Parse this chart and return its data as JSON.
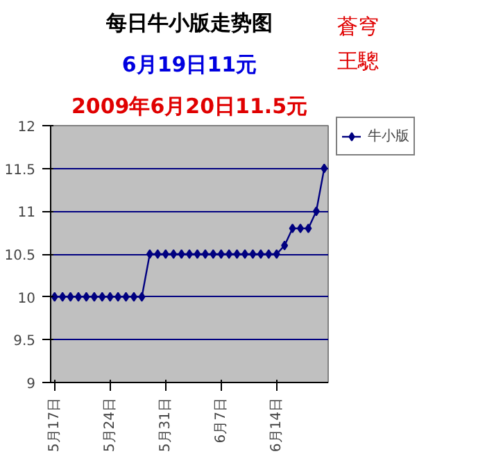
{
  "chart_data": {
    "type": "line",
    "title": "每日牛小版走势图",
    "subtitle": "6月19日11元",
    "annotations": [
      "2009年6月20日11.5元",
      "蒼穹",
      "王驄"
    ],
    "categories": [
      "5月17日",
      null,
      null,
      null,
      null,
      null,
      null,
      "5月24日",
      null,
      null,
      null,
      null,
      null,
      null,
      "5月31日",
      null,
      null,
      null,
      null,
      null,
      null,
      "6月7日",
      null,
      null,
      null,
      null,
      null,
      null,
      "6月14日",
      null,
      null,
      null,
      null,
      null,
      null
    ],
    "series": [
      {
        "name": "牛小版",
        "color": "#000080",
        "values": [
          10,
          10,
          10,
          10,
          10,
          10,
          10,
          10,
          10,
          10,
          10,
          10,
          10.5,
          10.5,
          10.5,
          10.5,
          10.5,
          10.5,
          10.5,
          10.5,
          10.5,
          10.5,
          10.5,
          10.5,
          10.5,
          10.5,
          10.5,
          10.5,
          10.5,
          10.6,
          10.8,
          10.8,
          10.8,
          11,
          11.5
        ]
      }
    ],
    "ylim": [
      9,
      12
    ],
    "yticks": [
      9,
      9.5,
      10,
      10.5,
      11,
      11.5,
      12
    ],
    "grid": "y",
    "legend": "right",
    "marker": "diamond",
    "line_style": "solid"
  }
}
